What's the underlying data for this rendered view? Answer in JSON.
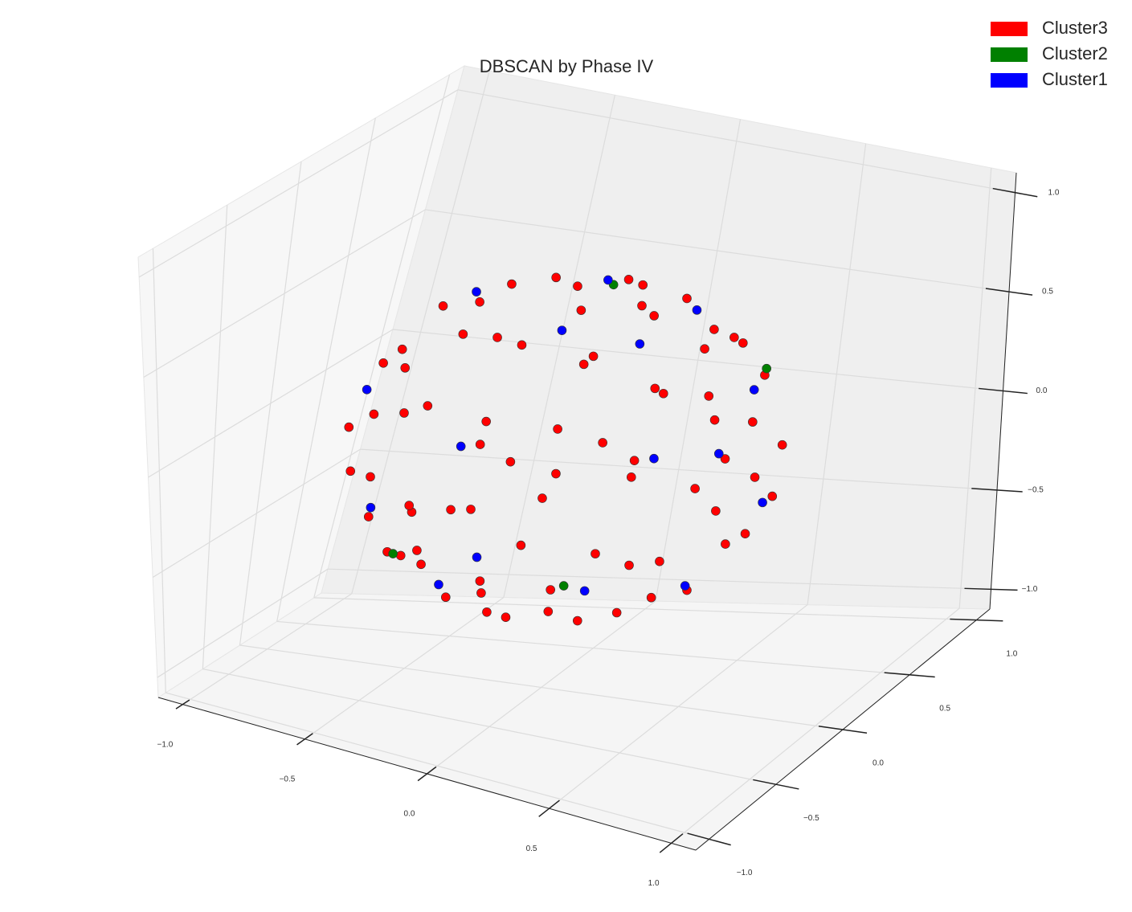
{
  "chart_data": {
    "type": "scatter3d",
    "title": "DBSCAN by Phase IV",
    "xlim": [
      -1.1,
      1.1
    ],
    "ylim": [
      -1.1,
      1.1
    ],
    "zlim": [
      -1.1,
      1.1
    ],
    "xticks": [
      {
        "value": -1.0,
        "label": "−1.0"
      },
      {
        "value": -0.5,
        "label": "−0.5"
      },
      {
        "value": 0.0,
        "label": "0.0"
      },
      0.5,
      {
        "value": 1.0,
        "label": "1.0"
      }
    ],
    "yticks": [
      {
        "value": -1.0,
        "label": "−1.0"
      },
      {
        "value": -0.5,
        "label": "−0.5"
      },
      {
        "value": 0.0,
        "label": "0.0"
      },
      0.5,
      {
        "value": 1.0,
        "label": "1.0"
      }
    ],
    "zticks": [
      {
        "value": -1.0,
        "label": "−1.0"
      },
      {
        "value": -0.5,
        "label": "−0.5"
      },
      {
        "value": 0.0,
        "label": "0.0"
      },
      0.5,
      {
        "value": 1.0,
        "label": "1.0"
      }
    ],
    "grid": true,
    "legend": "upper right",
    "series": [
      {
        "name": "Cluster3",
        "color": "#ff0000",
        "x": [
          -0.7,
          -0.7,
          -0.7,
          -0.7,
          -0.7,
          -0.7,
          -0.5,
          -0.5,
          -0.5,
          -0.5,
          -0.5,
          -0.5,
          -0.5,
          -0.5,
          -0.5,
          -0.5,
          -0.25,
          -0.25,
          -0.25,
          -0.25,
          -0.25,
          -0.25,
          -0.25,
          -0.25,
          -0.25,
          -0.25,
          -0.25,
          -0.25,
          0,
          0,
          0,
          0,
          0,
          0,
          0,
          0,
          0,
          0,
          0,
          0,
          0.25,
          0.25,
          0.25,
          0.25,
          0.25,
          0.25,
          0.25,
          0.25,
          0.25,
          0.25,
          0.25,
          0.25,
          0.5,
          0.5,
          0.5,
          0.5,
          0.5,
          0.5,
          0.5,
          0.5,
          0.5,
          0.5,
          0.7,
          0.7,
          0.7,
          0.7,
          0.7,
          0.7,
          0.15,
          -0.15,
          0.6,
          -0.6,
          0.35,
          -0.35,
          0.4,
          -0.4
        ],
        "y": [
          0,
          0,
          0.2,
          -0.2,
          0.25,
          -0.25,
          0,
          0,
          0.3,
          0.3,
          -0.3,
          -0.3,
          0.5,
          0.5,
          -0.5,
          -0.5,
          0,
          0,
          0.35,
          0.35,
          -0.35,
          -0.35,
          0.6,
          0.6,
          -0.6,
          -0.6,
          0.7,
          -0.7,
          0,
          0,
          0.4,
          0.4,
          -0.4,
          -0.4,
          0.65,
          0.65,
          -0.65,
          -0.65,
          0.75,
          -0.75,
          0,
          0,
          0.35,
          0.35,
          -0.35,
          -0.35,
          0.6,
          0.6,
          -0.6,
          -0.6,
          0.7,
          -0.7,
          0,
          0,
          0.3,
          0.3,
          -0.3,
          -0.3,
          0.5,
          0.5,
          -0.5,
          -0.5,
          0,
          0,
          0.2,
          -0.2,
          0.25,
          -0.25,
          0.2,
          -0.2,
          -0.15,
          0.15,
          0.55,
          -0.55,
          -0.55,
          0.55
        ],
        "z": [
          0.26,
          -0.26,
          0.17,
          -0.17,
          -0.05,
          0.05,
          0.56,
          -0.56,
          0.47,
          -0.47,
          0.47,
          -0.47,
          0.24,
          -0.24,
          0.24,
          -0.24,
          0.71,
          -0.71,
          0.61,
          -0.61,
          0.61,
          -0.61,
          0.37,
          -0.37,
          0.37,
          -0.37,
          0.09,
          -0.09,
          0.75,
          -0.75,
          0.63,
          -0.63,
          0.63,
          -0.63,
          0.37,
          -0.37,
          0.37,
          -0.37,
          0,
          0,
          0.71,
          -0.71,
          -0.61,
          0.61,
          -0.61,
          0.61,
          -0.37,
          0.37,
          -0.37,
          0.37,
          -0.09,
          0.09,
          0.56,
          -0.56,
          0.47,
          -0.47,
          0.47,
          -0.47,
          0.24,
          -0.24,
          0.24,
          -0.24,
          0.26,
          -0.26,
          -0.17,
          0.17,
          0.05,
          -0.05,
          0.71,
          -0.71,
          0.42,
          -0.42,
          0.37,
          -0.37,
          0.32,
          -0.32
        ]
      },
      {
        "name": "Cluster2",
        "color": "#008000",
        "x": [
          -0.1,
          0.3,
          -0.4,
          0.55
        ],
        "y": [
          0.5,
          -0.6,
          -0.5,
          0.4
        ],
        "z": [
          0.55,
          -0.34,
          -0.39,
          0.32
        ]
      },
      {
        "name": "Cluster1",
        "color": "#0000ff",
        "x": [
          0.1,
          -0.45,
          0.45,
          -0.6,
          0.6,
          0.2,
          -0.2,
          0.35,
          -0.35,
          0.55,
          -0.55,
          0.05,
          -0.1,
          0.65,
          -0.65,
          0.3
        ],
        "y": [
          -0.3,
          0.15,
          0.1,
          -0.35,
          0.35,
          0.55,
          -0.55,
          -0.2,
          0.2,
          -0.45,
          0.45,
          0.2,
          0.45,
          0.1,
          -0.1,
          0.65
        ],
        "z": [
          0.68,
          0.58,
          -0.59,
          0.28,
          -0.28,
          0.47,
          -0.47,
          0.63,
          -0.63,
          0.24,
          -0.24,
          -0.72,
          0.59,
          0.36,
          -0.36,
          -0.22
        ]
      }
    ]
  }
}
